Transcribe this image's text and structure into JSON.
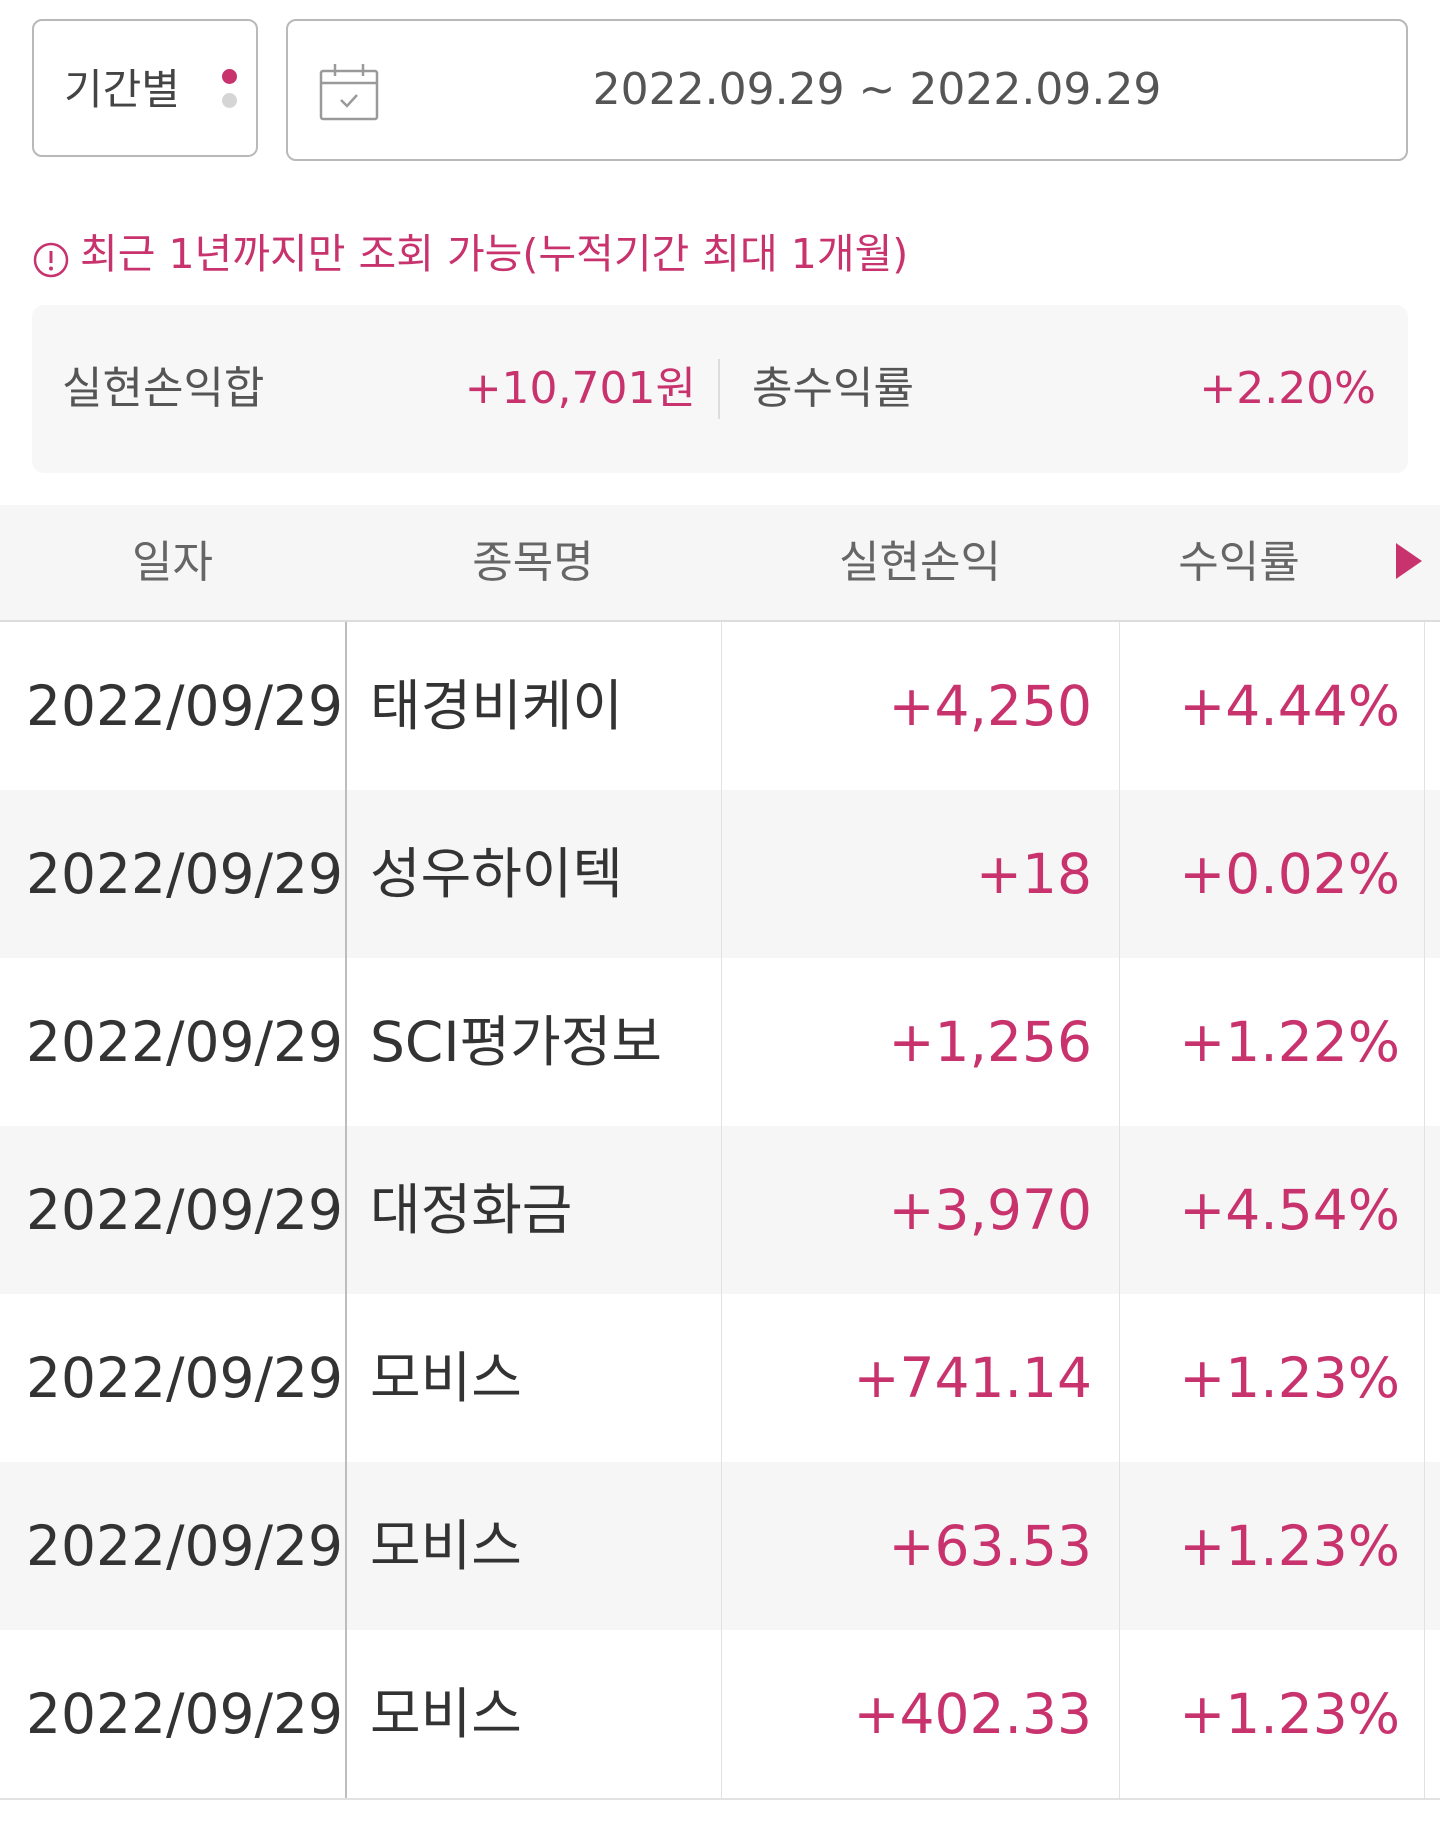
{
  "colors": {
    "accent": "#c8336e",
    "dot_inactive": "#d5d5d5"
  },
  "filter": {
    "period_label": "기간별",
    "date_range": "2022.09.29 ~ 2022.09.29",
    "calendar_icon": "calendar-check-icon"
  },
  "notice": {
    "icon": "info-circle-icon",
    "text": "최근 1년까지만 조회 가능(누적기간 최대 1개월)"
  },
  "summary": {
    "realized_label": "실현손익합",
    "realized_value": "+10,701원",
    "return_label": "총수익률",
    "return_value": "+2.20%"
  },
  "table": {
    "headers": {
      "date": "일자",
      "name": "종목명",
      "pnl": "실현손익",
      "rate": "수익률"
    },
    "more_icon": "triangle-right-icon",
    "rows": [
      {
        "date": "2022/09/29",
        "name": "태경비케이",
        "pnl": "+4,250",
        "rate": "+4.44%"
      },
      {
        "date": "2022/09/29",
        "name": "성우하이텍",
        "pnl": "+18",
        "rate": "+0.02%"
      },
      {
        "date": "2022/09/29",
        "name": "SCI평가정보",
        "pnl": "+1,256",
        "rate": "+1.22%"
      },
      {
        "date": "2022/09/29",
        "name": "대정화금",
        "pnl": "+3,970",
        "rate": "+4.54%"
      },
      {
        "date": "2022/09/29",
        "name": "모비스",
        "pnl": "+741.14",
        "rate": "+1.23%"
      },
      {
        "date": "2022/09/29",
        "name": "모비스",
        "pnl": "+63.53",
        "rate": "+1.23%"
      },
      {
        "date": "2022/09/29",
        "name": "모비스",
        "pnl": "+402.33",
        "rate": "+1.23%"
      }
    ]
  }
}
